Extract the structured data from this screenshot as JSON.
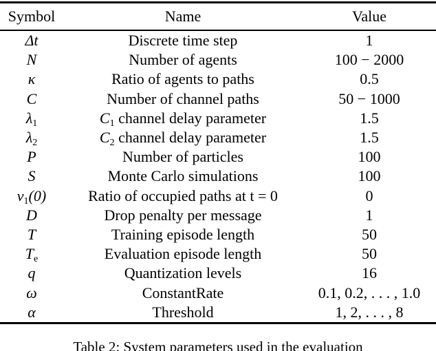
{
  "table": {
    "columns": [
      "Symbol",
      "Name",
      "Value"
    ],
    "rows": [
      {
        "sym": "Δt",
        "sym_sub": "",
        "sym_suf": "",
        "name_pre": "",
        "name_sub": "",
        "name": "Discrete time step",
        "value": "1"
      },
      {
        "sym": "N",
        "sym_sub": "",
        "sym_suf": "",
        "name_pre": "",
        "name_sub": "",
        "name": "Number of agents",
        "value": "100 − 2000"
      },
      {
        "sym": "κ",
        "sym_sub": "",
        "sym_suf": "",
        "name_pre": "",
        "name_sub": "",
        "name": "Ratio of agents to paths",
        "value": "0.5"
      },
      {
        "sym": "C",
        "sym_sub": "",
        "sym_suf": "",
        "name_pre": "",
        "name_sub": "",
        "name": "Number of channel paths",
        "value": "50 − 1000"
      },
      {
        "sym": "λ",
        "sym_sub": "1",
        "sym_suf": "",
        "name_pre": "C",
        "name_sub": "1",
        "name": " channel delay parameter",
        "value": "1.5"
      },
      {
        "sym": "λ",
        "sym_sub": "2",
        "sym_suf": "",
        "name_pre": "C",
        "name_sub": "2",
        "name": " channel delay parameter",
        "value": "1.5"
      },
      {
        "sym": "P",
        "sym_sub": "",
        "sym_suf": "",
        "name_pre": "",
        "name_sub": "",
        "name": "Number of particles",
        "value": "100"
      },
      {
        "sym": "S",
        "sym_sub": "",
        "sym_suf": "",
        "name_pre": "",
        "name_sub": "",
        "name": "Monte Carlo simulations",
        "value": "100"
      },
      {
        "sym": "ν",
        "sym_sub": "1",
        "sym_suf": "(0)",
        "name_pre": "",
        "name_sub": "",
        "name": "Ratio of occupied paths at t = 0",
        "value": "0"
      },
      {
        "sym": "D",
        "sym_sub": "",
        "sym_suf": "",
        "name_pre": "",
        "name_sub": "",
        "name": "Drop penalty per message",
        "value": "1"
      },
      {
        "sym": "T",
        "sym_sub": "",
        "sym_suf": "",
        "name_pre": "",
        "name_sub": "",
        "name": "Training episode length",
        "value": "50"
      },
      {
        "sym": "T",
        "sym_sub": "e",
        "sym_suf": "",
        "name_pre": "",
        "name_sub": "",
        "name": "Evaluation episode length",
        "value": "50"
      },
      {
        "sym": "q",
        "sym_sub": "",
        "sym_suf": "",
        "name_pre": "",
        "name_sub": "",
        "name": "Quantization levels",
        "value": "16"
      },
      {
        "sym": "ω",
        "sym_sub": "",
        "sym_suf": "",
        "name_pre": "",
        "name_sub": "",
        "name": "ConstantRate",
        "value": "0.1, 0.2, . . . , 1.0"
      },
      {
        "sym": "α",
        "sym_sub": "",
        "sym_suf": "",
        "name_pre": "",
        "name_sub": "",
        "name": "Threshold",
        "value": "1, 2, . . . , 8"
      }
    ]
  },
  "caption": "Table 2: System parameters used in the evaluation"
}
